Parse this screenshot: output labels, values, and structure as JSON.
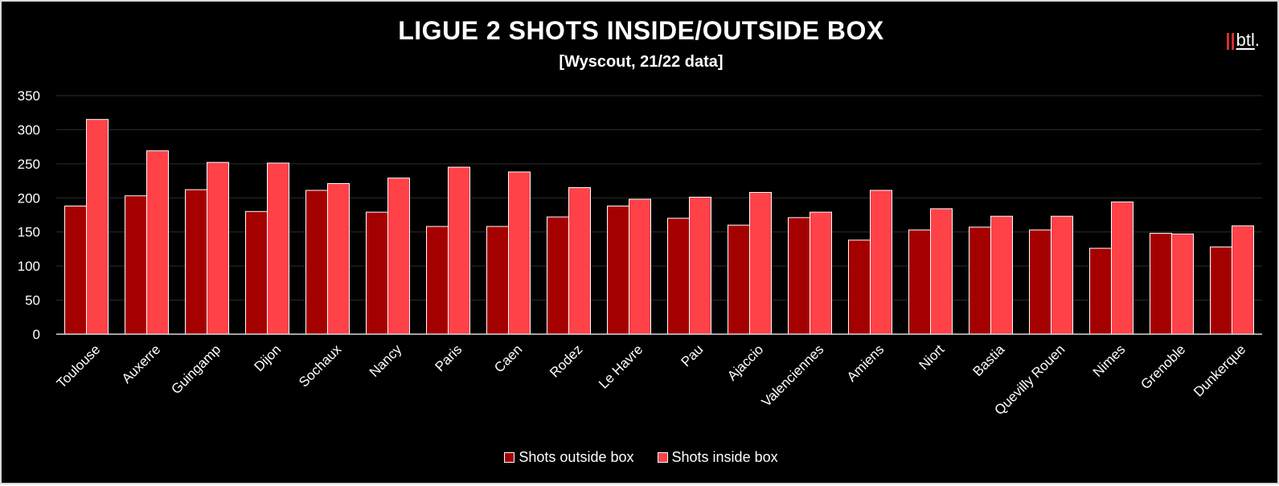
{
  "title": "LIGUE 2 SHOTS INSIDE/OUTSIDE BOX",
  "subtitle": "[Wyscout, 21/22 data]",
  "logo": {
    "bars": "||",
    "word": "btl",
    "dot": "."
  },
  "colors": {
    "background": "#000000",
    "outside": "#a50000",
    "inside": "#ff4148",
    "grid": "#2e2e2e",
    "axis": "#d9d9d9"
  },
  "chart_data": {
    "type": "bar",
    "title": "LIGUE 2 SHOTS INSIDE/OUTSIDE BOX",
    "subtitle": "[Wyscout, 21/22 data]",
    "xlabel": "",
    "ylabel": "",
    "ylim": [
      0,
      350
    ],
    "yticks": [
      0,
      50,
      100,
      150,
      200,
      250,
      300,
      350
    ],
    "grid": true,
    "legend_position": "bottom",
    "categories": [
      "Toulouse",
      "Auxerre",
      "Guingamp",
      "Dijon",
      "Sochaux",
      "Nancy",
      "Paris",
      "Caen",
      "Rodez",
      "Le Havre",
      "Pau",
      "Ajaccio",
      "Valenciennes",
      "Amiens",
      "Niort",
      "Bastia",
      "Quevilly Rouen",
      "Nimes",
      "Grenoble",
      "Dunkerque"
    ],
    "series": [
      {
        "name": "Shots outside box",
        "color": "#a50000",
        "values": [
          188,
          203,
          212,
          180,
          211,
          179,
          158,
          158,
          172,
          188,
          170,
          160,
          171,
          138,
          153,
          157,
          153,
          126,
          148,
          128
        ]
      },
      {
        "name": "Shots inside box",
        "color": "#ff4148",
        "values": [
          315,
          269,
          252,
          251,
          221,
          229,
          245,
          238,
          215,
          198,
          201,
          208,
          179,
          211,
          184,
          173,
          173,
          194,
          147,
          159
        ]
      }
    ]
  }
}
